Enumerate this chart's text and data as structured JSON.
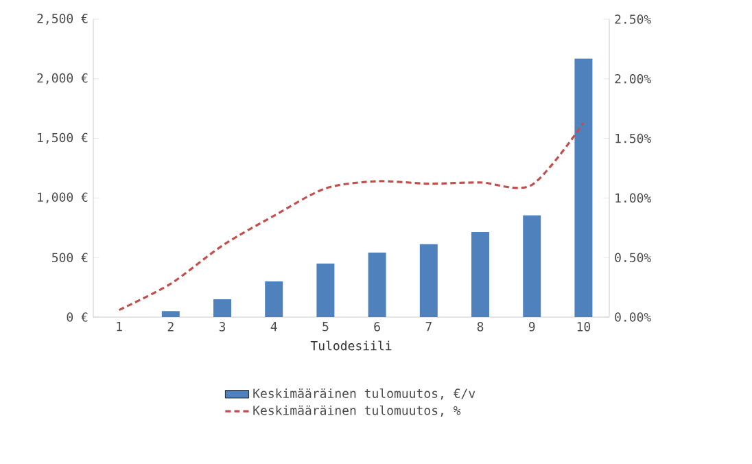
{
  "chart_data": {
    "type": "bar",
    "xlabel": "Tulodesiili",
    "categories": [
      "1",
      "2",
      "3",
      "4",
      "5",
      "6",
      "7",
      "8",
      "9",
      "10"
    ],
    "series": [
      {
        "name": "Keskimääräinen tulomuutos, €/v",
        "color": "#4f81bd",
        "values": [
          0,
          50,
          150,
          300,
          450,
          542,
          612,
          715,
          854,
          2169
        ]
      },
      {
        "name": "Keskimääräinen tulomuutos, %",
        "type": "line",
        "axis": "y2",
        "color": "#c0504d",
        "line_style": "dashed",
        "marker": "none",
        "values": [
          0.06,
          0.28,
          0.6,
          0.85,
          1.08,
          1.14,
          1.12,
          1.13,
          1.11,
          1.63
        ]
      }
    ],
    "ylim": [
      0,
      2500
    ],
    "yticks": [
      {
        "value": 0,
        "label": "0 €"
      },
      {
        "value": 500,
        "label": "500 €"
      },
      {
        "value": 1000,
        "label": "1,000 €"
      },
      {
        "value": 1500,
        "label": "1,500 €"
      },
      {
        "value": 2000,
        "label": "2,000 €"
      },
      {
        "value": 2500,
        "label": "2,500 €"
      }
    ],
    "y2lim": [
      0,
      2.5
    ],
    "y2ticks": [
      {
        "value": 0,
        "label": "0.00%"
      },
      {
        "value": 0.5,
        "label": "0.50%"
      },
      {
        "value": 1,
        "label": "1.00%"
      },
      {
        "value": 1.5,
        "label": "1.50%"
      },
      {
        "value": 2,
        "label": "2.00%"
      },
      {
        "value": 2.5,
        "label": "2.50%"
      }
    ],
    "grid": false,
    "legend": "bottom"
  }
}
